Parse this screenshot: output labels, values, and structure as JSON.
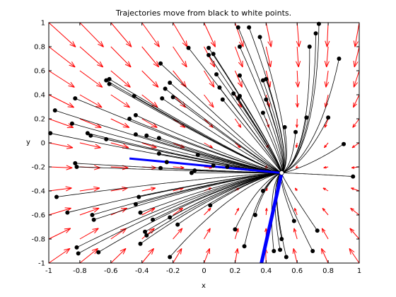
{
  "chart_data": {
    "type": "vector-field-trajectories",
    "title": "Trajectories move from black to white points.",
    "xlabel": "x",
    "ylabel": "y",
    "xlim": [
      -1,
      1
    ],
    "ylim": [
      -1,
      1
    ],
    "xticks": [
      -1,
      -0.8,
      -0.6,
      -0.4,
      -0.2,
      0,
      0.2,
      0.4,
      0.6,
      0.8,
      1
    ],
    "yticks": [
      -1,
      -0.8,
      -0.6,
      -0.4,
      -0.2,
      0,
      0.2,
      0.4,
      0.6,
      0.8,
      1
    ],
    "xtick_labels": [
      "-1",
      "-0.8",
      "-0.6",
      "-0.4",
      "-0.2",
      "0",
      "0.2",
      "0.4",
      "0.6",
      "0.8",
      "1"
    ],
    "ytick_labels": [
      "-1",
      "-0.8",
      "-0.6",
      "-0.4",
      "-0.2",
      "0",
      "0.2",
      "0.4",
      "0.6",
      "0.8",
      "1"
    ],
    "fixed_point": [
      0.5,
      -0.25
    ],
    "eigenvector_lines": [
      {
        "color": "#0000ff",
        "points": [
          [
            -0.48,
            -0.13
          ],
          [
            0.5,
            -0.25
          ]
        ]
      },
      {
        "color": "#0000ff",
        "points": [
          [
            0.5,
            -0.25
          ],
          [
            0.37,
            -1.0
          ]
        ]
      }
    ],
    "trajectory_starts": [
      [
        -0.99,
        0.08
      ],
      [
        -0.96,
        0.27
      ],
      [
        -0.83,
        0.37
      ],
      [
        -0.85,
        0.16
      ],
      [
        -0.75,
        0.08
      ],
      [
        -0.73,
        0.06
      ],
      [
        -0.63,
        0.03
      ],
      [
        -0.63,
        0.52
      ],
      [
        -0.61,
        0.53
      ],
      [
        -0.61,
        0.49
      ],
      [
        -0.45,
        0.39
      ],
      [
        -0.48,
        0.2
      ],
      [
        -0.44,
        0.23
      ],
      [
        -0.44,
        0.07
      ],
      [
        -0.37,
        0.06
      ],
      [
        -0.28,
        0.66
      ],
      [
        -0.27,
        0.37
      ],
      [
        -0.25,
        0.45
      ],
      [
        -0.22,
        0.5
      ],
      [
        -0.2,
        0.38
      ],
      [
        -0.1,
        0.79
      ],
      [
        -0.06,
        -0.23
      ],
      [
        -0.24,
        -0.16
      ],
      [
        -0.29,
        -0.09
      ],
      [
        -0.29,
        0.04
      ],
      [
        0.03,
        0.79
      ],
      [
        0.06,
        0.74
      ],
      [
        0.08,
        0.57
      ],
      [
        0.1,
        0.46
      ],
      [
        0.12,
        0.36
      ],
      [
        0.19,
        0.41
      ],
      [
        0.22,
        0.37
      ],
      [
        0.23,
        0.39
      ],
      [
        0.23,
        0.56
      ],
      [
        0.22,
        0.96
      ],
      [
        0.23,
        0.8
      ],
      [
        0.29,
        0.96
      ],
      [
        0.36,
        0.88
      ],
      [
        0.38,
        0.52
      ],
      [
        0.4,
        0.53
      ],
      [
        0.4,
        0.36
      ],
      [
        0.38,
        0.25
      ],
      [
        0.52,
        0.13
      ],
      [
        0.59,
        0.09
      ],
      [
        0.66,
        0.21
      ],
      [
        0.68,
        0.8
      ],
      [
        0.72,
        0.91
      ],
      [
        0.74,
        0.99
      ],
      [
        0.8,
        0.21
      ],
      [
        0.87,
        0.7
      ],
      [
        0.9,
        -0.01
      ],
      [
        0.96,
        -0.28
      ],
      [
        0.03,
        0.73
      ],
      [
        -0.04,
        -0.1
      ],
      [
        0.06,
        -0.19
      ],
      [
        0.15,
        -0.2
      ],
      [
        -0.95,
        -0.45
      ],
      [
        -0.88,
        -0.58
      ],
      [
        -0.83,
        -0.17
      ],
      [
        -0.82,
        -0.2
      ],
      [
        -0.72,
        -0.6
      ],
      [
        -0.71,
        -0.64
      ],
      [
        -0.68,
        -0.91
      ],
      [
        -0.44,
        -0.51
      ],
      [
        -0.42,
        -0.45
      ],
      [
        -0.41,
        -0.58
      ],
      [
        -0.41,
        -0.84
      ],
      [
        -0.38,
        -0.74
      ],
      [
        -0.37,
        -0.77
      ],
      [
        -0.33,
        -0.64
      ],
      [
        -0.22,
        -0.62
      ],
      [
        -0.22,
        -0.95
      ],
      [
        -0.17,
        -0.68
      ],
      [
        -0.28,
        -0.21
      ],
      [
        -0.08,
        -0.25
      ],
      [
        0.04,
        -0.52
      ],
      [
        0.2,
        -0.72
      ],
      [
        0.26,
        -0.86
      ],
      [
        0.33,
        -0.6
      ],
      [
        0.38,
        -0.4
      ],
      [
        0.45,
        -0.9
      ],
      [
        0.49,
        -0.89
      ],
      [
        0.53,
        -0.95
      ],
      [
        0.58,
        -0.65
      ],
      [
        0.7,
        -0.9
      ],
      [
        0.73,
        -0.73
      ],
      [
        -0.81,
        -0.92
      ],
      [
        -0.82,
        -0.87
      ],
      [
        0.5,
        -0.8
      ]
    ],
    "vector_field_color": "#ff0000",
    "trajectory_color": "#000000"
  }
}
